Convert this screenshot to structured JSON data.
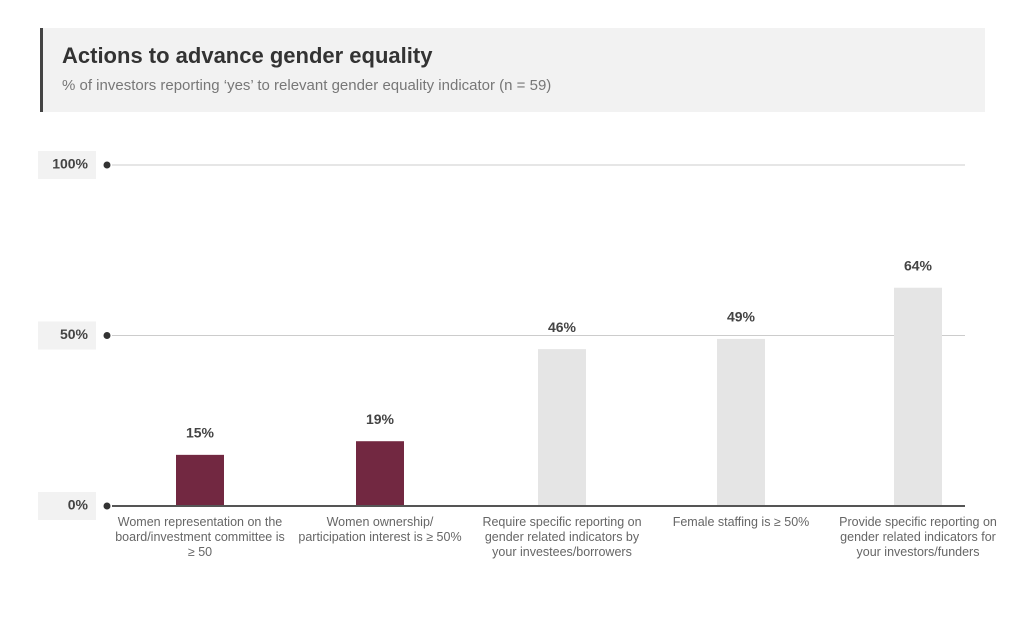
{
  "chart_data": {
    "type": "bar",
    "title": "Actions to advance gender equality",
    "subtitle": "% of investors reporting ‘yes’ to relevant gender equality indicator (n = 59)",
    "categories": [
      "Women representation on the board/investment committee is ≥ 50",
      "Women ownership/ participation interest is ≥ 50%",
      "Require specific reporting on gender related indicators by your investees/borrowers",
      "Female staffing is ≥ 50%",
      "Provide specific reporting on gender related indicators for your investors/funders"
    ],
    "values": [
      15,
      19,
      46,
      49,
      64
    ],
    "value_labels": [
      "15%",
      "19%",
      "46%",
      "49%",
      "64%"
    ],
    "colors": [
      "#722841",
      "#722841",
      "#e5e5e5",
      "#e5e5e5",
      "#e5e5e5"
    ],
    "ylim": [
      0,
      100
    ],
    "yticks": [
      {
        "value": 0,
        "label": "0%"
      },
      {
        "value": 50,
        "label": "50%"
      },
      {
        "value": 100,
        "label": "100%"
      }
    ],
    "grid": true
  }
}
